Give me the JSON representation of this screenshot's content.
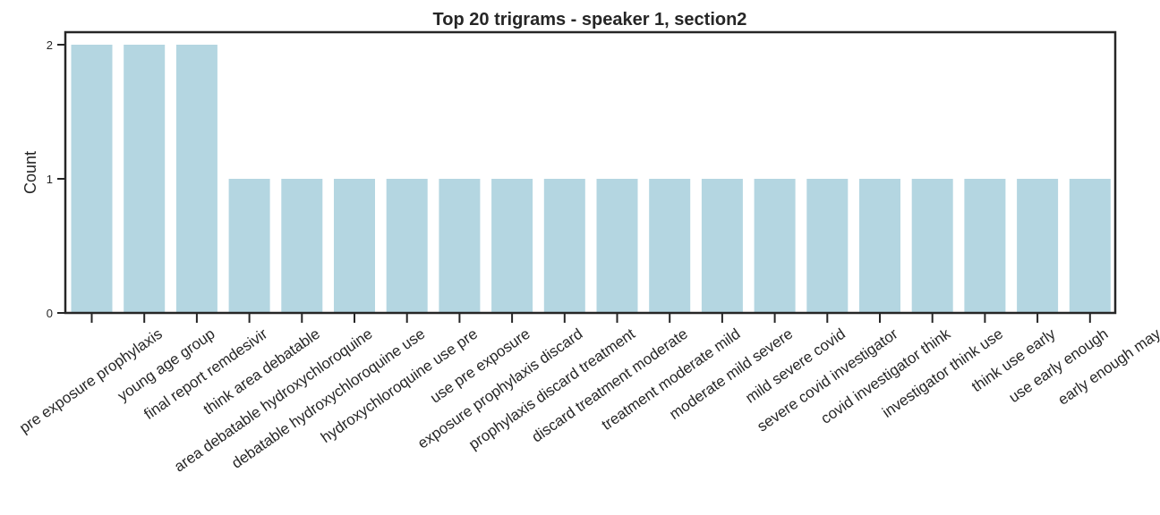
{
  "chart_data": {
    "type": "bar",
    "title": "Top 20 trigrams - speaker 1, section2",
    "xlabel": "",
    "ylabel": "Count",
    "ylim": [
      0,
      2.1
    ],
    "yticks": [
      0,
      1,
      2
    ],
    "grid": false,
    "bar_color": "#b4d6e1",
    "categories": [
      "pre exposure prophylaxis",
      "young age group",
      "final report remdesivir",
      "think area debatable",
      "area debatable hydroxychloroquine",
      "debatable hydroxychloroquine use",
      "hydroxychloroquine use pre",
      "use pre exposure",
      "exposure prophylaxis discard",
      "prophylaxis discard treatment",
      "discard treatment moderate",
      "treatment moderate mild",
      "moderate mild severe",
      "mild severe covid",
      "severe covid investigator",
      "covid investigator think",
      "investigator think use",
      "think use early",
      "use early enough",
      "early enough may"
    ],
    "values": [
      2,
      2,
      2,
      1,
      1,
      1,
      1,
      1,
      1,
      1,
      1,
      1,
      1,
      1,
      1,
      1,
      1,
      1,
      1,
      1
    ]
  }
}
